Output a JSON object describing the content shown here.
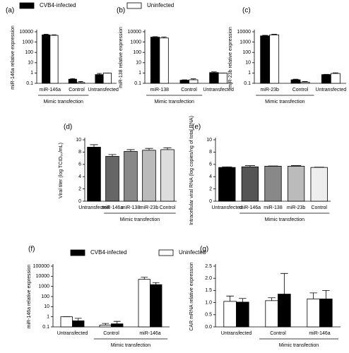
{
  "chart_data": [
    {
      "type": "bar",
      "panel": "(a)",
      "ylabel": "miR-146a relative expression",
      "log_scale": true,
      "categories": [
        "miR-146a",
        "Control",
        "Untransfected"
      ],
      "series": [
        {
          "name": "CVB4-infected",
          "color": "#000000",
          "values": [
            5000,
            0.25,
            0.7
          ],
          "errors": [
            800,
            0.04,
            0.2
          ]
        },
        {
          "name": "Uninfected",
          "color": "#ffffff",
          "values": [
            4500,
            0.12,
            1
          ],
          "errors": [
            600,
            0.03,
            0
          ]
        }
      ],
      "ylim": [
        0.1,
        10000
      ],
      "yticks": [
        0.1,
        1,
        10,
        100,
        1000,
        10000
      ],
      "groups": [
        {
          "label": "Mimic transfection",
          "categories": [
            "miR-146a",
            "Control"
          ]
        }
      ]
    },
    {
      "type": "bar",
      "panel": "(b)",
      "ylabel": "miR-138 relative expression",
      "log_scale": true,
      "categories": [
        "miR-138",
        "Control",
        "Untransfected"
      ],
      "series": [
        {
          "color": "#000000",
          "values": [
            3000,
            0.2,
            1.1
          ],
          "errors": [
            400,
            0.02,
            0.2
          ]
        },
        {
          "color": "#ffffff",
          "values": [
            2500,
            0.22,
            1
          ],
          "errors": [
            700,
            0.05,
            0
          ]
        }
      ],
      "ylim": [
        0.1,
        10000
      ],
      "yticks": [
        0.1,
        1,
        10,
        100,
        1000,
        10000
      ],
      "groups": [
        {
          "label": "Mimic transfection",
          "categories": [
            "miR-138",
            "Control"
          ]
        }
      ]
    },
    {
      "type": "bar",
      "panel": "(c)",
      "ylabel": "miR-23b relative expression",
      "log_scale": true,
      "categories": [
        "miR-23b",
        "Control",
        "Untransfected"
      ],
      "series": [
        {
          "color": "#000000",
          "values": [
            4000,
            0.22,
            0.7
          ],
          "errors": [
            500,
            0.03,
            0.05
          ]
        },
        {
          "color": "#ffffff",
          "values": [
            5000,
            0.13,
            0.9
          ],
          "errors": [
            700,
            0.02,
            0.15
          ]
        }
      ],
      "ylim": [
        0.1,
        10000
      ],
      "yticks": [
        0.1,
        1,
        10,
        100,
        1000,
        10000
      ],
      "groups": [
        {
          "label": "Mimic transfection",
          "categories": [
            "miR-23b",
            "Control"
          ]
        }
      ]
    },
    {
      "type": "bar",
      "panel": "(d)",
      "ylabel": "Viral titer (log TCID₅₀/mL)",
      "categories": [
        "Untransfected",
        "miR-146a",
        "miR-138",
        "miR-23b",
        "Control"
      ],
      "values": [
        8.8,
        7.3,
        8.1,
        8.3,
        8.4
      ],
      "errors": [
        0.4,
        0.3,
        0.3,
        0.3,
        0.3
      ],
      "colors": [
        "#000000",
        "#666666",
        "#888888",
        "#bbbbbb",
        "#dddddd"
      ],
      "ylim": [
        0,
        10
      ],
      "yticks": [
        0,
        2,
        4,
        6,
        8,
        10
      ],
      "groups": [
        {
          "label": "Mimic transfection",
          "categories": [
            "miR-146a",
            "miR-138",
            "miR-23b",
            "Control"
          ]
        }
      ]
    },
    {
      "type": "bar",
      "panel": "(e)",
      "ylabel": "Intracellular viral RNA (log copies/ng of total RNA)",
      "categories": [
        "Untransfected",
        "miR-146a",
        "miR-138",
        "miR-23b",
        "Control"
      ],
      "values": [
        5.5,
        5.6,
        5.7,
        5.7,
        5.5
      ],
      "errors": [
        0.1,
        0.2,
        0.05,
        0.1,
        0.05
      ],
      "colors": [
        "#000000",
        "#555555",
        "#888888",
        "#bbbbbb",
        "#eeeeee"
      ],
      "ylim": [
        0,
        10
      ],
      "yticks": [
        0,
        2,
        4,
        6,
        8,
        10
      ],
      "groups": [
        {
          "label": "Mimic transfection",
          "categories": [
            "miR-146a",
            "miR-138",
            "miR-23b",
            "Control"
          ]
        }
      ]
    },
    {
      "type": "bar",
      "panel": "(f)",
      "ylabel": "miR-146a relative expression",
      "log_scale": true,
      "categories": [
        "Untransfected",
        "Control",
        "miR-146a"
      ],
      "series": [
        {
          "name": "Uninfected",
          "color": "#ffffff",
          "values": [
            1,
            0.15,
            5000
          ],
          "errors": [
            0,
            0.07,
            3000
          ]
        },
        {
          "name": "CVB4-infected",
          "color": "#000000",
          "values": [
            0.4,
            0.2,
            1500
          ],
          "errors": [
            0.3,
            0.15,
            900
          ]
        }
      ],
      "ylim": [
        0.1,
        100000
      ],
      "yticks": [
        0.1,
        1,
        10,
        100,
        1000,
        10000,
        100000
      ],
      "groups": [
        {
          "label": "Mimic transfection",
          "categories": [
            "Control",
            "miR-146a"
          ]
        }
      ]
    },
    {
      "type": "bar",
      "panel": "(g)",
      "ylabel": "CAR mRNA relative expression",
      "categories": [
        "Untransfected",
        "Control",
        "miR-146a"
      ],
      "series": [
        {
          "color": "#ffffff",
          "values": [
            1.05,
            1.08,
            1.15
          ],
          "errors": [
            0.22,
            0.12,
            0.25
          ]
        },
        {
          "color": "#000000",
          "values": [
            1.02,
            1.35,
            1.15
          ],
          "errors": [
            0.15,
            0.85,
            0.35
          ]
        }
      ],
      "ylim": [
        0,
        2.5
      ],
      "yticks": [
        {
          "value": 0,
          "label": "0.0"
        },
        0.5,
        {
          "value": 1,
          "label": "1.0"
        },
        1.5,
        {
          "value": 2,
          "label": "2.0"
        },
        2.5
      ],
      "groups": [
        {
          "label": "Mimic transfection",
          "categories": [
            "Control",
            "miR-146a"
          ]
        }
      ]
    }
  ]
}
